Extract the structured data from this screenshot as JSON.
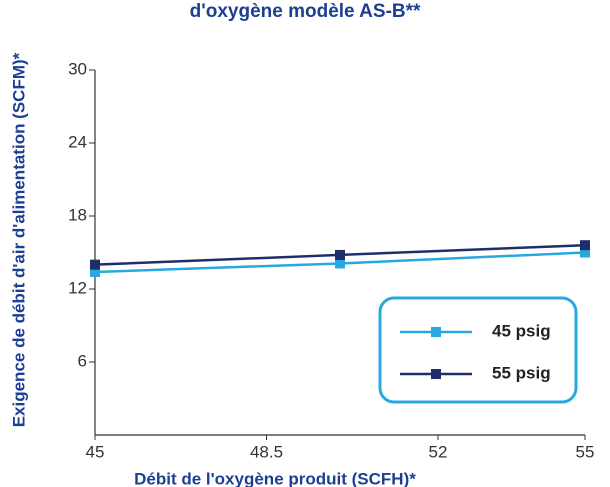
{
  "chart_data": {
    "type": "line",
    "title": "d'oxygène modèle AS-B**",
    "x_label": "Débit de l'oxygène produit (SCFH)*",
    "y_label": "Exigence de débit d'air d'alimentation (SCFM)*",
    "x": [
      45,
      50,
      55
    ],
    "series": [
      {
        "name": "45 psig",
        "color": "#29a8e0",
        "values": [
          13.4,
          14.1,
          15.0
        ]
      },
      {
        "name": "55 psig",
        "color": "#1f2d6b",
        "values": [
          14.0,
          14.8,
          15.6
        ]
      }
    ],
    "xlim": [
      45,
      55
    ],
    "xticks": [
      45,
      48.5,
      52,
      55
    ],
    "ylim": [
      0,
      30
    ],
    "yticks": [
      6,
      12,
      18,
      24,
      30
    ],
    "legend": "lower right",
    "legend_border_color": "#29a8e0"
  }
}
